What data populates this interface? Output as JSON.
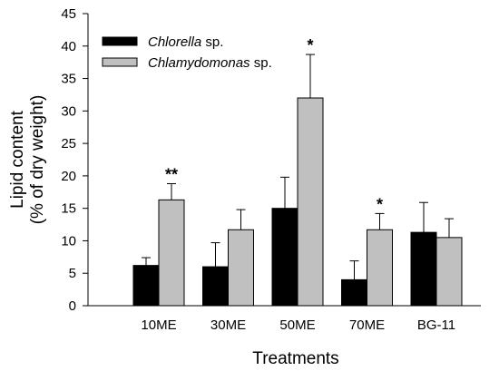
{
  "chart_data": {
    "type": "bar",
    "title": "",
    "xlabel": "Treatments",
    "ylabel_line1": "Lipid content",
    "ylabel_line2": "(% of dry weight)",
    "ylim": [
      0,
      45
    ],
    "yticks": [
      0,
      5,
      10,
      15,
      20,
      25,
      30,
      35,
      40,
      45
    ],
    "categories": [
      "10ME",
      "30ME",
      "50ME",
      "70ME",
      "BG-11"
    ],
    "series": [
      {
        "name_italic": "Chlorella",
        "name_suffix": " sp.",
        "color": "#000000",
        "values": [
          6.2,
          6.0,
          15.0,
          4.0,
          11.3
        ],
        "errors": [
          1.2,
          3.7,
          4.8,
          2.9,
          4.6
        ],
        "significance": [
          "",
          "",
          "",
          "",
          ""
        ]
      },
      {
        "name_italic": "Chlamydomonas",
        "name_suffix": " sp.",
        "color": "#c0c0c0",
        "values": [
          16.3,
          11.7,
          32.0,
          11.7,
          10.5
        ],
        "errors": [
          2.5,
          3.1,
          6.7,
          2.5,
          2.9
        ],
        "significance": [
          "**",
          "",
          "*",
          "*",
          ""
        ]
      }
    ],
    "legend_position": "top-left",
    "grid": false
  }
}
